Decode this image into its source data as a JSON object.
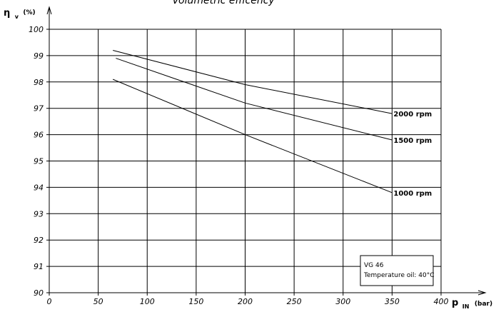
{
  "chart_data": {
    "type": "line",
    "title": "Volumetric efficency",
    "ylabel": {
      "main": "η",
      "sub": "v",
      "unit": "(%)"
    },
    "xlabel": {
      "main": "p",
      "sub": "IN",
      "unit": "(bar)"
    },
    "xlim": [
      0,
      400
    ],
    "ylim": [
      90,
      100
    ],
    "xticks": [
      0,
      50,
      100,
      150,
      200,
      250,
      300,
      350,
      400
    ],
    "yticks": [
      90,
      91,
      92,
      93,
      94,
      95,
      96,
      97,
      98,
      99,
      100
    ],
    "grid": true,
    "series": [
      {
        "name": "2000 rpm",
        "x": [
          65,
          200,
          350
        ],
        "y": [
          99.2,
          97.9,
          96.8
        ]
      },
      {
        "name": "1500 rpm",
        "x": [
          68,
          200,
          350
        ],
        "y": [
          98.9,
          97.2,
          95.8
        ]
      },
      {
        "name": "1000 rpm",
        "x": [
          65,
          200,
          350
        ],
        "y": [
          98.1,
          96.0,
          93.8
        ]
      }
    ],
    "annotation": {
      "lines": [
        "VG 46",
        "Temperature oil: 40°C"
      ]
    }
  }
}
